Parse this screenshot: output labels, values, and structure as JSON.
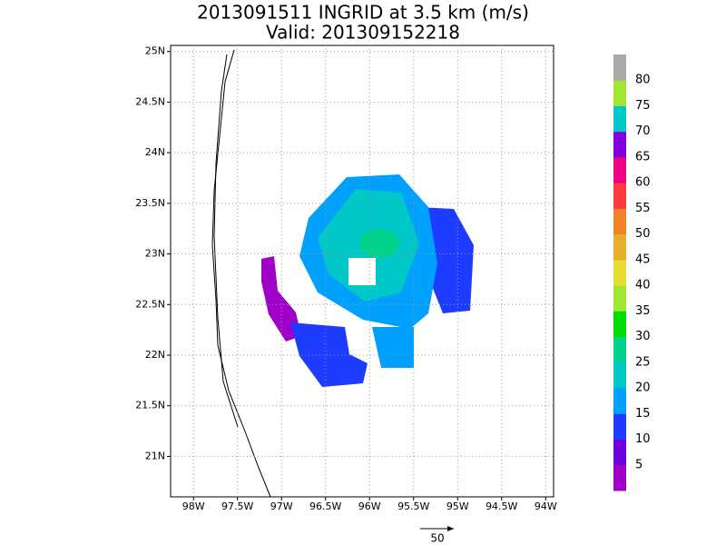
{
  "title": "2013091511 INGRID at 3.5 km (m/s)",
  "subtitle": "Valid: 201309152218",
  "map": {
    "xlim": [
      -98.26,
      -93.91
    ],
    "ylim": [
      20.6,
      25.06
    ],
    "xticks": [
      {
        "value": -98,
        "label": "98W"
      },
      {
        "value": -97.5,
        "label": "97.5W"
      },
      {
        "value": -97,
        "label": "97W"
      },
      {
        "value": -96.5,
        "label": "96.5W"
      },
      {
        "value": -96,
        "label": "96W"
      },
      {
        "value": -95.5,
        "label": "95.5W"
      },
      {
        "value": -95,
        "label": "95W"
      },
      {
        "value": -94.5,
        "label": "94.5W"
      },
      {
        "value": -94,
        "label": "94W"
      }
    ],
    "yticks": [
      {
        "value": 21,
        "label": "21N"
      },
      {
        "value": 21.5,
        "label": "21.5N"
      },
      {
        "value": 22,
        "label": "22N"
      },
      {
        "value": 22.5,
        "label": "22.5N"
      },
      {
        "value": 23,
        "label": "23N"
      },
      {
        "value": 23.5,
        "label": "23.5N"
      },
      {
        "value": 24,
        "label": "24N"
      },
      {
        "value": 24.5,
        "label": "24.5N"
      },
      {
        "value": 25,
        "label": "25N"
      }
    ],
    "grid": true
  },
  "colorbar": {
    "colors": [
      "#a000c8",
      "#6e00dc",
      "#1e3cff",
      "#00a0ff",
      "#00c8c8",
      "#00d28c",
      "#00dc00",
      "#a0e632",
      "#e6dc32",
      "#e6af2d",
      "#f08228",
      "#fa3c3c",
      "#f00082",
      "#8200dc",
      "#00c8c8",
      "#a0e632",
      "#aaaaaa"
    ],
    "labels": [
      5,
      10,
      15,
      20,
      25,
      30,
      35,
      40,
      45,
      50,
      55,
      60,
      65,
      70,
      75,
      80
    ]
  },
  "vector_scale": {
    "value": 50
  }
}
